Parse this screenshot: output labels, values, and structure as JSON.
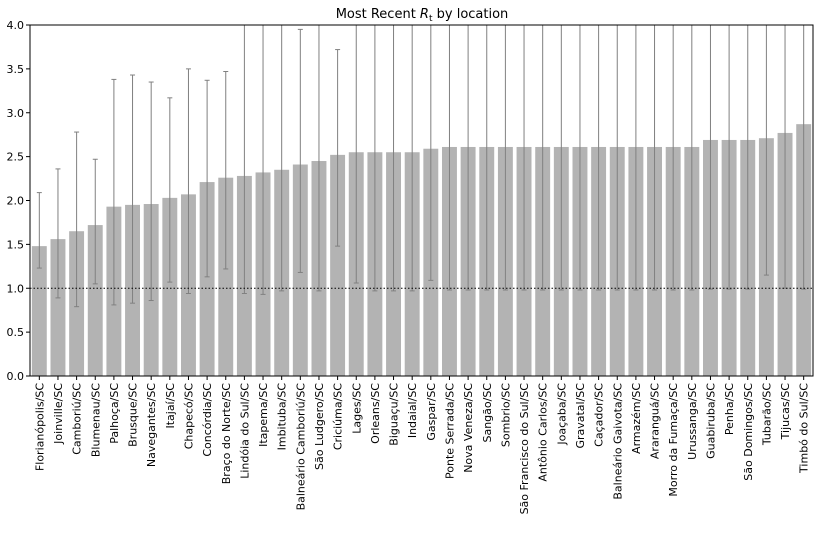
{
  "chart_data": {
    "type": "bar",
    "title_prefix": "Most Recent ",
    "title_symbol": "R",
    "title_subscript": "t",
    "title_suffix": " by location",
    "xlabel": "",
    "ylabel": "",
    "ylim": [
      0,
      4.0
    ],
    "yticks": [
      "0.0",
      "0.5",
      "1.0",
      "1.5",
      "2.0",
      "2.5",
      "3.0",
      "3.5",
      "4.0"
    ],
    "reference_line": 1.0,
    "grid": false,
    "bar_color": "#b3b3b3",
    "errorbar_color": "#808080",
    "categories": [
      "Florianópolis/SC",
      "Joinville/SC",
      "Camboriú/SC",
      "Blumenau/SC",
      "Palhoça/SC",
      "Brusque/SC",
      "Navegantes/SC",
      "Itajaí/SC",
      "Chapecó/SC",
      "Concórdia/SC",
      "Braço do Norte/SC",
      "Lindóia do Sul/SC",
      "Itapema/SC",
      "Imbituba/SC",
      "Balneário Camboriú/SC",
      "São Ludgero/SC",
      "Criciúma/SC",
      "Lages/SC",
      "Orleans/SC",
      "Biguaçu/SC",
      "Indaial/SC",
      "Gaspar/SC",
      "Ponte Serrada/SC",
      "Nova Veneza/SC",
      "Sangão/SC",
      "Sombrio/SC",
      "São Francisco do Sul/SC",
      "Antônio Carlos/SC",
      "Joaçaba/SC",
      "Gravatal/SC",
      "Caçador/SC",
      "Balneário Gaivota/SC",
      "Armazém/SC",
      "Araranguá/SC",
      "Morro da Fumaça/SC",
      "Urussanga/SC",
      "Guabiruba/SC",
      "Penha/SC",
      "São Domingos/SC",
      "Tubarão/SC",
      "Tijucas/SC",
      "Timbó do Sul/SC"
    ],
    "values": [
      1.48,
      1.56,
      1.65,
      1.72,
      1.93,
      1.95,
      1.96,
      2.03,
      2.07,
      2.21,
      2.26,
      2.28,
      2.32,
      2.35,
      2.41,
      2.45,
      2.52,
      2.55,
      2.55,
      2.55,
      2.55,
      2.59,
      2.61,
      2.61,
      2.61,
      2.61,
      2.61,
      2.61,
      2.61,
      2.61,
      2.61,
      2.61,
      2.61,
      2.61,
      2.61,
      2.61,
      2.69,
      2.69,
      2.69,
      2.71,
      2.77,
      2.87
    ],
    "error_low": [
      1.23,
      0.89,
      0.79,
      1.05,
      0.81,
      0.83,
      0.86,
      1.07,
      0.94,
      1.13,
      1.22,
      0.94,
      0.93,
      0.97,
      1.18,
      0.97,
      1.48,
      1.06,
      0.97,
      0.97,
      0.97,
      1.09,
      0.98,
      0.98,
      0.98,
      0.98,
      0.98,
      0.98,
      0.98,
      0.98,
      0.98,
      0.98,
      0.98,
      0.98,
      0.98,
      0.98,
      0.99,
      0.99,
      0.99,
      1.15,
      1.0,
      0.99
    ],
    "error_high": [
      2.09,
      2.36,
      2.78,
      2.47,
      3.38,
      3.43,
      3.35,
      3.17,
      3.5,
      3.37,
      3.47,
      4.0,
      4.0,
      4.0,
      3.95,
      4.0,
      3.72,
      4.0,
      4.0,
      4.0,
      4.0,
      4.0,
      4.0,
      4.0,
      4.0,
      4.0,
      4.0,
      4.0,
      4.0,
      4.0,
      4.0,
      4.0,
      4.0,
      4.0,
      4.0,
      4.0,
      4.0,
      4.0,
      4.0,
      4.0,
      4.0,
      4.0
    ]
  }
}
